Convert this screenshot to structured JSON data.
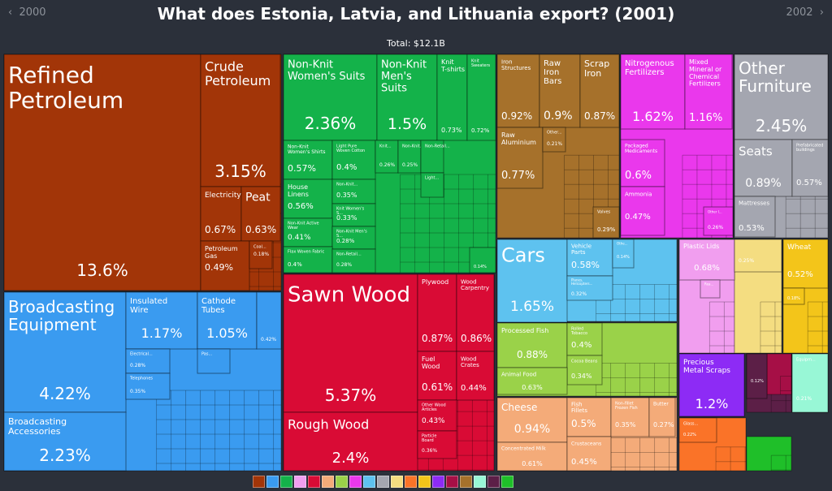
{
  "nav": {
    "prev_label": "2000",
    "next_label": "2002",
    "prev_icon": "chevron-left-icon",
    "next_icon": "chevron-right-icon"
  },
  "header": {
    "title": "What does Estonia, Latvia, and Lithuania export? (2001)",
    "total": "Total: $12.1B"
  },
  "colors": {
    "mineral": "#a23508",
    "machinery": "#3a9bf0",
    "textiles": "#14b24a",
    "wood": "#d90b35",
    "metals": "#a6712b",
    "chemicals": "#ea38ec",
    "misc": "#a4a6b0",
    "transport": "#5ec2ef",
    "vegetable": "#9ad249",
    "animal": "#f4ab79",
    "plastics": "#f19eef",
    "stone": "#f4dd81",
    "vegprod": "#f3c51a",
    "precious": "#8d2bf5",
    "arts": "#5c1f47",
    "instruments": "#a60f46",
    "footwear": "#fa7328",
    "weapons": "#1fbf29",
    "oils": "#98f7d6"
  },
  "chart_data": {
    "type": "treemap",
    "title": "What does Estonia, Latvia, and Lithuania export? (2001)",
    "total": "$12.1B",
    "items": [
      {
        "name": "Refined Petroleum",
        "value": 13.6,
        "label": "13.6%",
        "category": "mineral"
      },
      {
        "name": "Crude Petroleum",
        "value": 3.15,
        "label": "3.15%",
        "category": "mineral"
      },
      {
        "name": "Electricity",
        "value": 0.67,
        "label": "0.67%",
        "category": "mineral"
      },
      {
        "name": "Peat",
        "value": 0.63,
        "label": "0.63%",
        "category": "mineral"
      },
      {
        "name": "Petroleum Gas",
        "value": 0.49,
        "label": "0.49%",
        "category": "mineral"
      },
      {
        "name": "Coal...",
        "value": 0.18,
        "label": "0.18%",
        "category": "mineral"
      },
      {
        "name": "Broadcasting Equipment",
        "value": 4.22,
        "label": "4.22%",
        "category": "machinery"
      },
      {
        "name": "Broadcasting Accessories",
        "value": 2.23,
        "label": "2.23%",
        "category": "machinery"
      },
      {
        "name": "Insulated Wire",
        "value": 1.17,
        "label": "1.17%",
        "category": "machinery"
      },
      {
        "name": "Cathode Tubes",
        "value": 1.05,
        "label": "1.05%",
        "category": "machinery"
      },
      {
        "name": "",
        "value": 0.42,
        "label": "0.42%",
        "category": "machinery"
      },
      {
        "name": "Electrical...",
        "value": 0.28,
        "label": "0.28%",
        "category": "machinery"
      },
      {
        "name": "Telephones",
        "value": 0.35,
        "label": "0.35%",
        "category": "machinery"
      },
      {
        "name": "Pas...",
        "value": 0.2,
        "label": "",
        "category": "machinery"
      },
      {
        "name": "Non-Knit Women's Suits",
        "value": 2.36,
        "label": "2.36%",
        "category": "textiles"
      },
      {
        "name": "Non-Knit Men's Suits",
        "value": 1.5,
        "label": "1.5%",
        "category": "textiles"
      },
      {
        "name": "Knit T-shirts",
        "value": 0.73,
        "label": "0.73%",
        "category": "textiles"
      },
      {
        "name": "Knit Sweaters",
        "value": 0.72,
        "label": "0.72%",
        "category": "textiles"
      },
      {
        "name": "Non-Knit Women's Shirts",
        "value": 0.57,
        "label": "0.57%",
        "category": "textiles"
      },
      {
        "name": "Light Pure Woven Cotton",
        "value": 0.4,
        "label": "0.4%",
        "category": "textiles"
      },
      {
        "name": "Knit...",
        "value": 0.26,
        "label": "0.26%",
        "category": "textiles"
      },
      {
        "name": "Non-Knit...",
        "value": 0.25,
        "label": "0.25%",
        "category": "textiles"
      },
      {
        "name": "Non-Retail...",
        "value": 0.2,
        "label": "",
        "category": "textiles"
      },
      {
        "name": "House Linens",
        "value": 0.56,
        "label": "0.56%",
        "category": "textiles"
      },
      {
        "name": "Non-Knit...",
        "value": 0.35,
        "label": "0.35%",
        "category": "textiles"
      },
      {
        "name": "Knit Women's S...",
        "value": 0.33,
        "label": "0.33%",
        "category": "textiles"
      },
      {
        "name": "Light...",
        "value": 0.2,
        "label": "",
        "category": "textiles"
      },
      {
        "name": "Non-Knit Active Wear",
        "value": 0.41,
        "label": "0.41%",
        "category": "textiles"
      },
      {
        "name": "Non-Knit Men's S...",
        "value": 0.28,
        "label": "0.28%",
        "category": "textiles"
      },
      {
        "name": "Flax Woven Fabric",
        "value": 0.4,
        "label": "0.4%",
        "category": "textiles"
      },
      {
        "name": "Non-Retail...",
        "value": 0.28,
        "label": "0.28%",
        "category": "textiles"
      },
      {
        "name": "",
        "value": 0.14,
        "label": "0.14%",
        "category": "textiles"
      },
      {
        "name": "Sawn Wood",
        "value": 5.37,
        "label": "5.37%",
        "category": "wood"
      },
      {
        "name": "Rough Wood",
        "value": 2.4,
        "label": "2.4%",
        "category": "wood"
      },
      {
        "name": "Plywood",
        "value": 0.87,
        "label": "0.87%",
        "category": "wood"
      },
      {
        "name": "Wood Carpentry",
        "value": 0.86,
        "label": "0.86%",
        "category": "wood"
      },
      {
        "name": "Fuel Wood",
        "value": 0.61,
        "label": "0.61%",
        "category": "wood"
      },
      {
        "name": "Wood Crates",
        "value": 0.44,
        "label": "0.44%",
        "category": "wood"
      },
      {
        "name": "Other Wood Articles",
        "value": 0.43,
        "label": "0.43%",
        "category": "wood"
      },
      {
        "name": "Particle Board",
        "value": 0.36,
        "label": "0.36%",
        "category": "wood"
      },
      {
        "name": "Iron Structures",
        "value": 0.92,
        "label": "0.92%",
        "category": "metals"
      },
      {
        "name": "Raw Iron Bars",
        "value": 0.9,
        "label": "0.9%",
        "category": "metals"
      },
      {
        "name": "Scrap Iron",
        "value": 0.87,
        "label": "0.87%",
        "category": "metals"
      },
      {
        "name": "Raw Aluminium",
        "value": 0.77,
        "label": "0.77%",
        "category": "metals"
      },
      {
        "name": "Other...",
        "value": 0.21,
        "label": "0.21%",
        "category": "metals"
      },
      {
        "name": "Valves",
        "value": 0.29,
        "label": "0.29%",
        "category": "metals"
      },
      {
        "name": "Nitrogenous Fertilizers",
        "value": 1.62,
        "label": "1.62%",
        "category": "chemicals"
      },
      {
        "name": "Mixed Mineral or Chemical Fertilizers",
        "value": 1.16,
        "label": "1.16%",
        "category": "chemicals"
      },
      {
        "name": "Packaged Medicaments",
        "value": 0.6,
        "label": "0.6%",
        "category": "chemicals"
      },
      {
        "name": "Ammonia",
        "value": 0.47,
        "label": "0.47%",
        "category": "chemicals"
      },
      {
        "name": "Other I...",
        "value": 0.26,
        "label": "0.26%",
        "category": "chemicals"
      },
      {
        "name": "Other Furniture",
        "value": 2.45,
        "label": "2.45%",
        "category": "misc"
      },
      {
        "name": "Seats",
        "value": 0.89,
        "label": "0.89%",
        "category": "misc"
      },
      {
        "name": "Prefabricated buildings",
        "value": 0.57,
        "label": "0.57%",
        "category": "misc"
      },
      {
        "name": "Mattresses",
        "value": 0.53,
        "label": "0.53%",
        "category": "misc"
      },
      {
        "name": "Cars",
        "value": 1.65,
        "label": "1.65%",
        "category": "transport"
      },
      {
        "name": "Vehicle Parts",
        "value": 0.58,
        "label": "0.58%",
        "category": "transport"
      },
      {
        "name": "Othe...",
        "value": 0.14,
        "label": "0.14%",
        "category": "transport"
      },
      {
        "name": "Planes, Helicopters...",
        "value": 0.32,
        "label": "0.32%",
        "category": "transport"
      },
      {
        "name": "Processed Fish",
        "value": 0.88,
        "label": "0.88%",
        "category": "vegetable"
      },
      {
        "name": "Rolled Tobacco",
        "value": 0.4,
        "label": "0.4%",
        "category": "vegetable"
      },
      {
        "name": "Cocoa Beans",
        "value": 0.34,
        "label": "0.34%",
        "category": "vegetable"
      },
      {
        "name": "Animal Food",
        "value": 0.63,
        "label": "0.63%",
        "category": "vegetable"
      },
      {
        "name": "Cheese",
        "value": 0.94,
        "label": "0.94%",
        "category": "animal"
      },
      {
        "name": "Fish Fillets",
        "value": 0.5,
        "label": "0.5%",
        "category": "animal"
      },
      {
        "name": "Non-fillet Frozen Fish",
        "value": 0.35,
        "label": "0.35%",
        "category": "animal"
      },
      {
        "name": "Butter",
        "value": 0.27,
        "label": "0.27%",
        "category": "animal"
      },
      {
        "name": "Concentrated Milk",
        "value": 0.61,
        "label": "0.61%",
        "category": "animal"
      },
      {
        "name": "Crustaceans",
        "value": 0.45,
        "label": "0.45%",
        "category": "animal"
      },
      {
        "name": "Plastic Lids",
        "value": 0.68,
        "label": "0.68%",
        "category": "plastics"
      },
      {
        "name": "Rea...",
        "value": 0.2,
        "label": "",
        "category": "plastics"
      },
      {
        "name": "",
        "value": 0.25,
        "label": "0.25%",
        "category": "stone"
      },
      {
        "name": "Wheat",
        "value": 0.52,
        "label": "0.52%",
        "category": "vegprod"
      },
      {
        "name": "",
        "value": 0.18,
        "label": "0.18%",
        "category": "vegprod"
      },
      {
        "name": "Precious Metal Scraps",
        "value": 1.2,
        "label": "1.2%",
        "category": "precious"
      },
      {
        "name": "",
        "value": 0.12,
        "label": "0.12%",
        "category": "arts"
      },
      {
        "name": "Glass...",
        "value": 0.22,
        "label": "0.22%",
        "category": "footwear"
      },
      {
        "name": "Equipm...",
        "value": 0.21,
        "label": "0.21%",
        "category": "oils"
      }
    ],
    "legend": [
      "mineral",
      "machinery",
      "textiles",
      "plastics",
      "wood",
      "animal",
      "vegetable",
      "chemicals",
      "transport",
      "misc",
      "stone",
      "footwear",
      "vegprod",
      "precious",
      "instruments",
      "metals",
      "oils",
      "arts",
      "weapons"
    ]
  }
}
